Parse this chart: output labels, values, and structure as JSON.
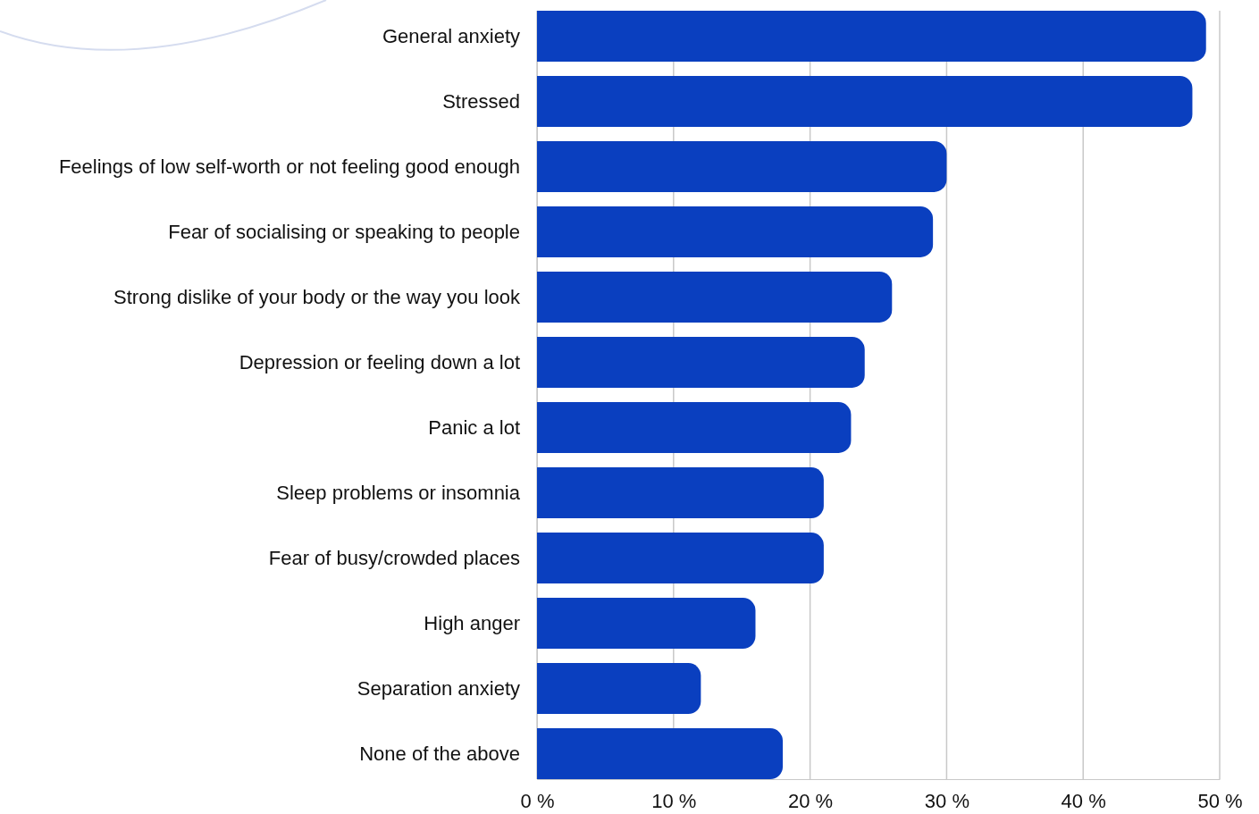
{
  "chart_data": {
    "type": "bar",
    "orientation": "horizontal",
    "categories": [
      "General anxiety",
      "Stressed",
      "Feelings of low self-worth or not feeling good enough",
      "Fear of socialising or speaking to people",
      "Strong dislike of your body or the way you look",
      "Depression or feeling down a lot",
      "Panic a lot",
      "Sleep problems or insomnia",
      "Fear of busy/crowded places",
      "High anger",
      "Separation anxiety",
      "None of the above"
    ],
    "values": [
      49,
      48,
      30,
      29,
      26,
      24,
      23,
      21,
      21,
      16,
      12,
      18
    ],
    "color": "#0a3fbf",
    "xlim": [
      0,
      50
    ],
    "xticks": [
      {
        "value": 0,
        "label": "0 %"
      },
      {
        "value": 10,
        "label": "10 %"
      },
      {
        "value": 20,
        "label": "20 %"
      },
      {
        "value": 30,
        "label": "30 %"
      },
      {
        "value": 40,
        "label": "40 %"
      },
      {
        "value": 50,
        "label": "50 %"
      }
    ],
    "grid": "x"
  }
}
